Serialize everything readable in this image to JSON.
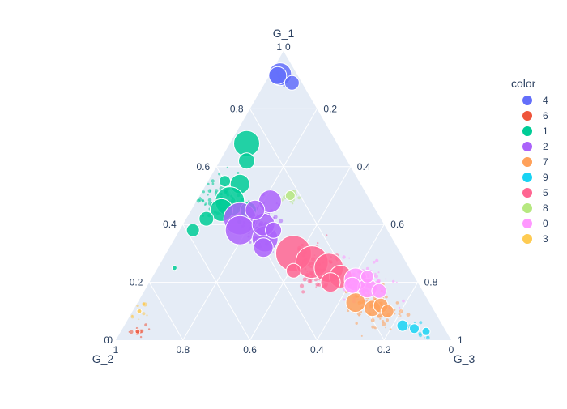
{
  "chart_data": {
    "type": "scatter",
    "subtype": "ternary",
    "axes": {
      "a": {
        "title": "G_1",
        "ticks": [
          "0",
          "0.2",
          "0.4",
          "0.6",
          "0.8",
          "1"
        ]
      },
      "b": {
        "title": "G_2",
        "ticks": [
          "0",
          "0.2",
          "0.4",
          "0.6",
          "0.8",
          "1"
        ]
      },
      "c": {
        "title": "G_3",
        "ticks": [
          "0",
          "0.2",
          "0.4",
          "0.6",
          "0.8",
          "1"
        ]
      }
    },
    "grid": true,
    "legend": {
      "title": "color",
      "placement": "top-right"
    },
    "series": [
      {
        "name": "4",
        "color": "#636efa",
        "points": [
          [
            0.92,
            0.05,
            0.03,
            14
          ],
          [
            0.915,
            0.06,
            0.025,
            11
          ],
          [
            0.89,
            0.03,
            0.08,
            9
          ]
        ]
      },
      {
        "name": "6",
        "color": "#EF553B",
        "points": [
          [
            0.03,
            0.92,
            0.05,
            3
          ]
        ]
      },
      {
        "name": "1",
        "color": "#00cc96",
        "points": [
          [
            0.68,
            0.27,
            0.05,
            16
          ],
          [
            0.62,
            0.3,
            0.08,
            10
          ],
          [
            0.54,
            0.36,
            0.1,
            12
          ],
          [
            0.48,
            0.42,
            0.1,
            18
          ],
          [
            0.45,
            0.46,
            0.09,
            14
          ],
          [
            0.42,
            0.52,
            0.06,
            9
          ],
          [
            0.38,
            0.58,
            0.04,
            8
          ],
          [
            0.45,
            0.38,
            0.17,
            10
          ],
          [
            0.25,
            0.7,
            0.05,
            3
          ],
          [
            0.55,
            0.4,
            0.05,
            7
          ]
        ]
      },
      {
        "name": "2",
        "color": "#ab63fa",
        "points": [
          [
            0.48,
            0.3,
            0.22,
            14
          ],
          [
            0.42,
            0.42,
            0.16,
            20
          ],
          [
            0.38,
            0.44,
            0.18,
            18
          ],
          [
            0.35,
            0.38,
            0.27,
            16
          ],
          [
            0.4,
            0.36,
            0.24,
            14
          ],
          [
            0.45,
            0.36,
            0.19,
            12
          ],
          [
            0.32,
            0.4,
            0.28,
            12
          ],
          [
            0.38,
            0.34,
            0.28,
            10
          ]
        ]
      },
      {
        "name": "7",
        "color": "#FFA15A",
        "points": [
          [
            0.13,
            0.22,
            0.65,
            12
          ],
          [
            0.11,
            0.18,
            0.71,
            10
          ],
          [
            0.12,
            0.15,
            0.73,
            9
          ],
          [
            0.1,
            0.14,
            0.76,
            8
          ]
        ]
      },
      {
        "name": "9",
        "color": "#19d3f3",
        "points": [
          [
            0.05,
            0.12,
            0.83,
            7
          ],
          [
            0.04,
            0.09,
            0.87,
            6
          ],
          [
            0.03,
            0.06,
            0.91,
            5
          ]
        ]
      },
      {
        "name": "5",
        "color": "#FF6692",
        "points": [
          [
            0.3,
            0.32,
            0.38,
            22
          ],
          [
            0.27,
            0.28,
            0.45,
            20
          ],
          [
            0.25,
            0.24,
            0.51,
            18
          ],
          [
            0.22,
            0.22,
            0.56,
            14
          ],
          [
            0.2,
            0.26,
            0.54,
            12
          ],
          [
            0.24,
            0.35,
            0.41,
            9
          ]
        ]
      },
      {
        "name": "8",
        "color": "#B6E880",
        "points": [
          [
            0.5,
            0.23,
            0.27,
            6
          ]
        ]
      },
      {
        "name": "0",
        "color": "#FF97FF",
        "points": [
          [
            0.21,
            0.18,
            0.61,
            14
          ],
          [
            0.18,
            0.16,
            0.66,
            12
          ],
          [
            0.19,
            0.2,
            0.61,
            10
          ],
          [
            0.17,
            0.13,
            0.7,
            9
          ],
          [
            0.22,
            0.14,
            0.64,
            8
          ]
        ]
      },
      {
        "name": "3",
        "color": "#FECB52",
        "points": [
          [
            0.1,
            0.88,
            0.02,
            3
          ]
        ]
      }
    ]
  }
}
